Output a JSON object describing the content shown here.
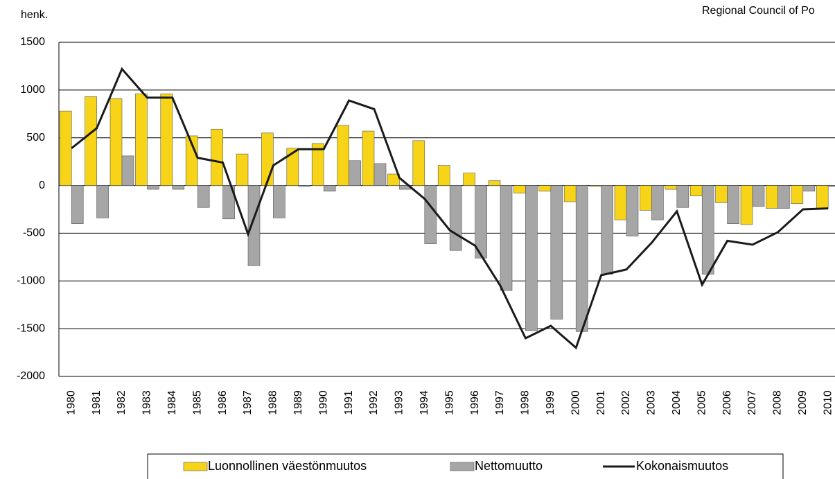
{
  "chart_data": {
    "type": "bar",
    "y_label": "henk.",
    "source": "Regional Council of Po",
    "categories": [
      "1980",
      "1981",
      "1982",
      "1983",
      "1984",
      "1985",
      "1986",
      "1987",
      "1988",
      "1989",
      "1990",
      "1991",
      "1992",
      "1993",
      "1994",
      "1995",
      "1996",
      "1997",
      "1998",
      "1999",
      "2000",
      "2001",
      "2002",
      "2003",
      "2004",
      "2005",
      "2006",
      "2007",
      "2008",
      "2009",
      "2010"
    ],
    "series": [
      {
        "name": "Luonnollinen väestönmuutos",
        "color": "#f7d417",
        "type": "bar",
        "values": [
          780,
          930,
          910,
          960,
          960,
          520,
          590,
          330,
          550,
          390,
          440,
          630,
          570,
          120,
          470,
          210,
          130,
          50,
          -80,
          -60,
          -170,
          -10,
          -360,
          -260,
          -40,
          -110,
          -180,
          -410,
          -240,
          -190,
          -240
        ]
      },
      {
        "name": "Nettomuutto",
        "color": "#a6a6a6",
        "type": "bar",
        "values": [
          -400,
          -340,
          310,
          -40,
          -40,
          -230,
          -350,
          -840,
          -340,
          -10,
          -60,
          260,
          230,
          -40,
          -610,
          -680,
          -760,
          -1100,
          -1520,
          -1400,
          -1530,
          -930,
          -530,
          -360,
          -230,
          -930,
          -400,
          -220,
          -240,
          -60,
          -10
        ]
      },
      {
        "name": "Kokonaismuutos",
        "color": "#1a1a1a",
        "type": "line",
        "values": [
          390,
          600,
          1220,
          920,
          920,
          290,
          240,
          -510,
          210,
          380,
          380,
          890,
          800,
          80,
          -140,
          -470,
          -630,
          -1050,
          -1600,
          -1470,
          -1700,
          -940,
          -880,
          -600,
          -270,
          -1040,
          -580,
          -620,
          -490,
          -250,
          -240
        ]
      }
    ],
    "ylim": [
      -2000,
      1500
    ],
    "yticks": [
      -2000,
      -1500,
      -1000,
      -500,
      0,
      500,
      1000,
      1500
    ],
    "grid": true
  }
}
